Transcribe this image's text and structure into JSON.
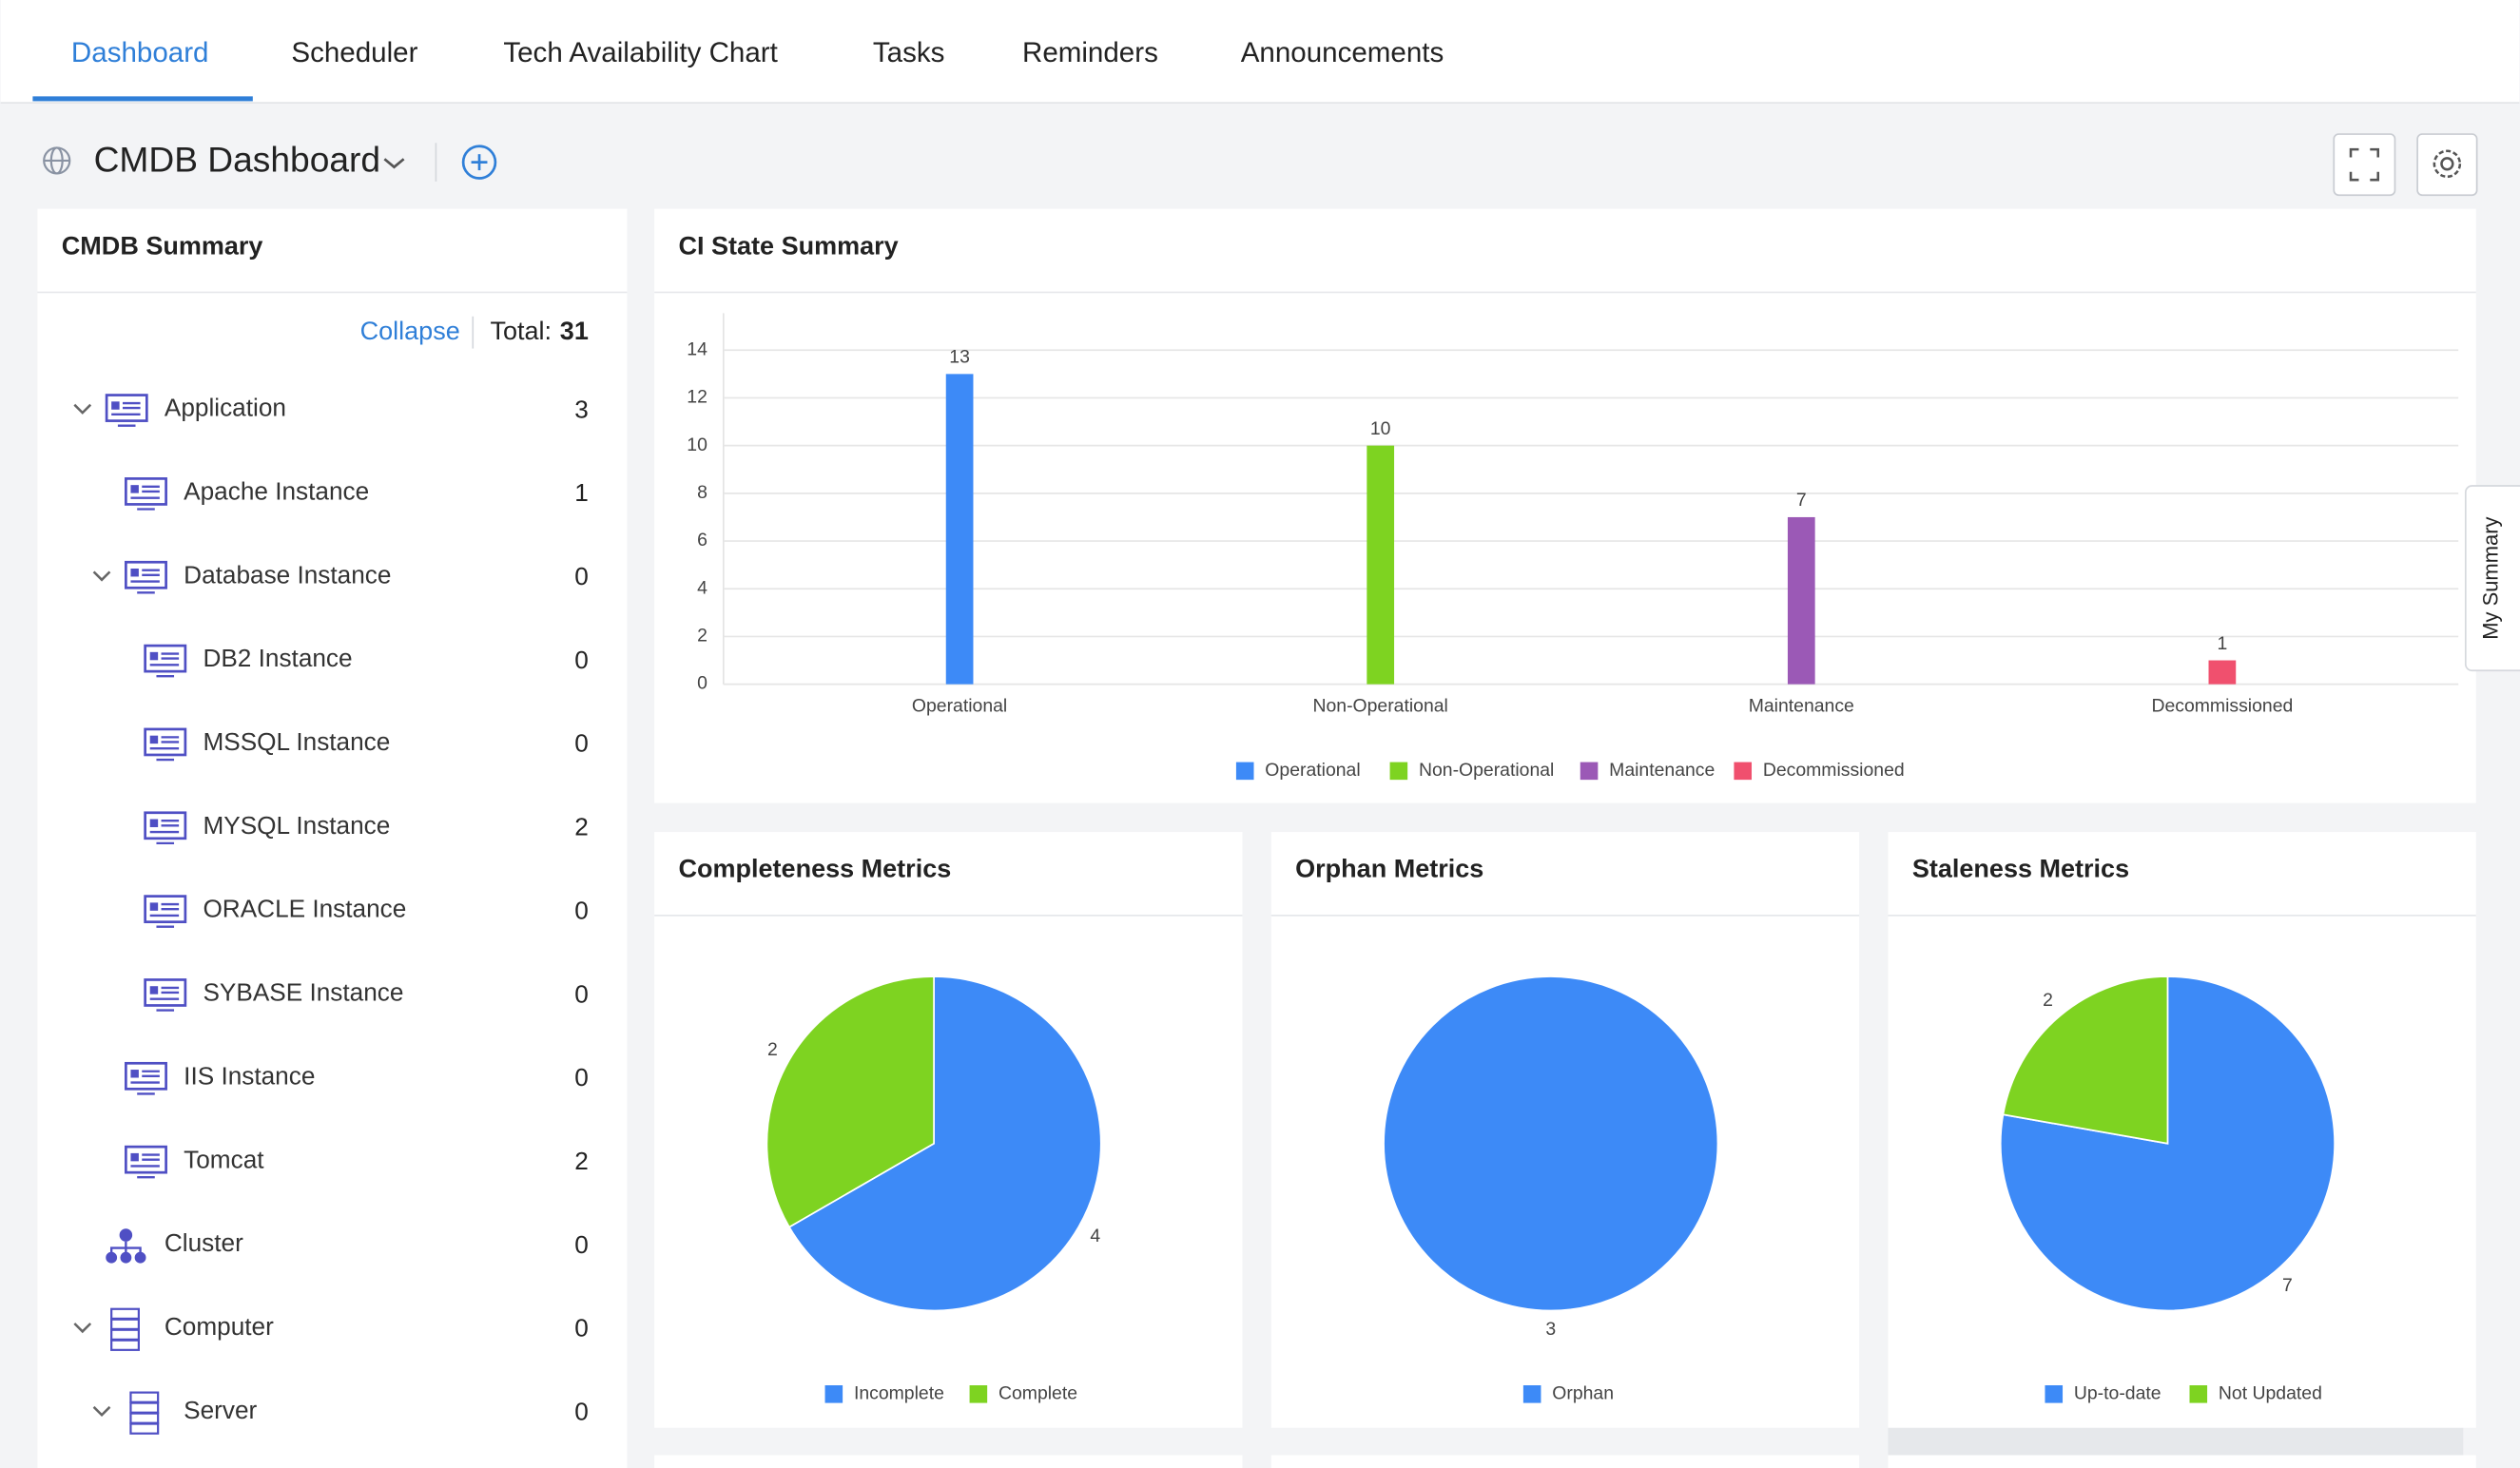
{
  "tabs": [
    "Dashboard",
    "Scheduler",
    "Tech Availability Chart",
    "Tasks",
    "Reminders",
    "Announcements"
  ],
  "dashboard": {
    "title": "CMDB Dashboard"
  },
  "side_tab": "My Summary",
  "cmdb_summary": {
    "title": "CMDB Summary",
    "collapse": "Collapse",
    "total_label": "Total:",
    "total": 31,
    "items": [
      {
        "label": "Application",
        "count": 3
      },
      {
        "label": "Apache Instance",
        "count": 1
      },
      {
        "label": "Database Instance",
        "count": 0
      },
      {
        "label": "DB2 Instance",
        "count": 0
      },
      {
        "label": "MSSQL Instance",
        "count": 0
      },
      {
        "label": "MYSQL Instance",
        "count": 2
      },
      {
        "label": "ORACLE Instance",
        "count": 0
      },
      {
        "label": "SYBASE Instance",
        "count": 0
      },
      {
        "label": "IIS Instance",
        "count": 0
      },
      {
        "label": "Tomcat",
        "count": 2
      },
      {
        "label": "Cluster",
        "count": 0
      },
      {
        "label": "Computer",
        "count": 0
      },
      {
        "label": "Server",
        "count": 0
      }
    ]
  },
  "chart_data": [
    {
      "type": "bar",
      "title": "CI State Summary",
      "categories": [
        "Operational",
        "Non-Operational",
        "Maintenance",
        "Decommissioned"
      ],
      "values": [
        13,
        10,
        7,
        1
      ],
      "colors": [
        "#3d8af7",
        "#7ed321",
        "#9b59b6",
        "#f0506e"
      ],
      "ylim": [
        0,
        14
      ],
      "yticks": [
        0,
        2,
        4,
        6,
        8,
        10,
        12,
        14
      ],
      "grid": true,
      "legend": "bottom"
    },
    {
      "type": "pie",
      "title": "Completeness Metrics",
      "categories": [
        "Incomplete",
        "Complete"
      ],
      "values": [
        4,
        2
      ],
      "colors": [
        "#3d8af7",
        "#7ed321"
      ],
      "legend": "bottom"
    },
    {
      "type": "pie",
      "title": "Orphan Metrics",
      "categories": [
        "Orphan"
      ],
      "values": [
        3
      ],
      "colors": [
        "#3d8af7"
      ],
      "legend": "bottom"
    },
    {
      "type": "pie",
      "title": "Staleness Metrics",
      "categories": [
        "Up-to-date",
        "Not Updated"
      ],
      "values": [
        7,
        2
      ],
      "colors": [
        "#3d8af7",
        "#7ed321"
      ],
      "legend": "bottom"
    }
  ]
}
